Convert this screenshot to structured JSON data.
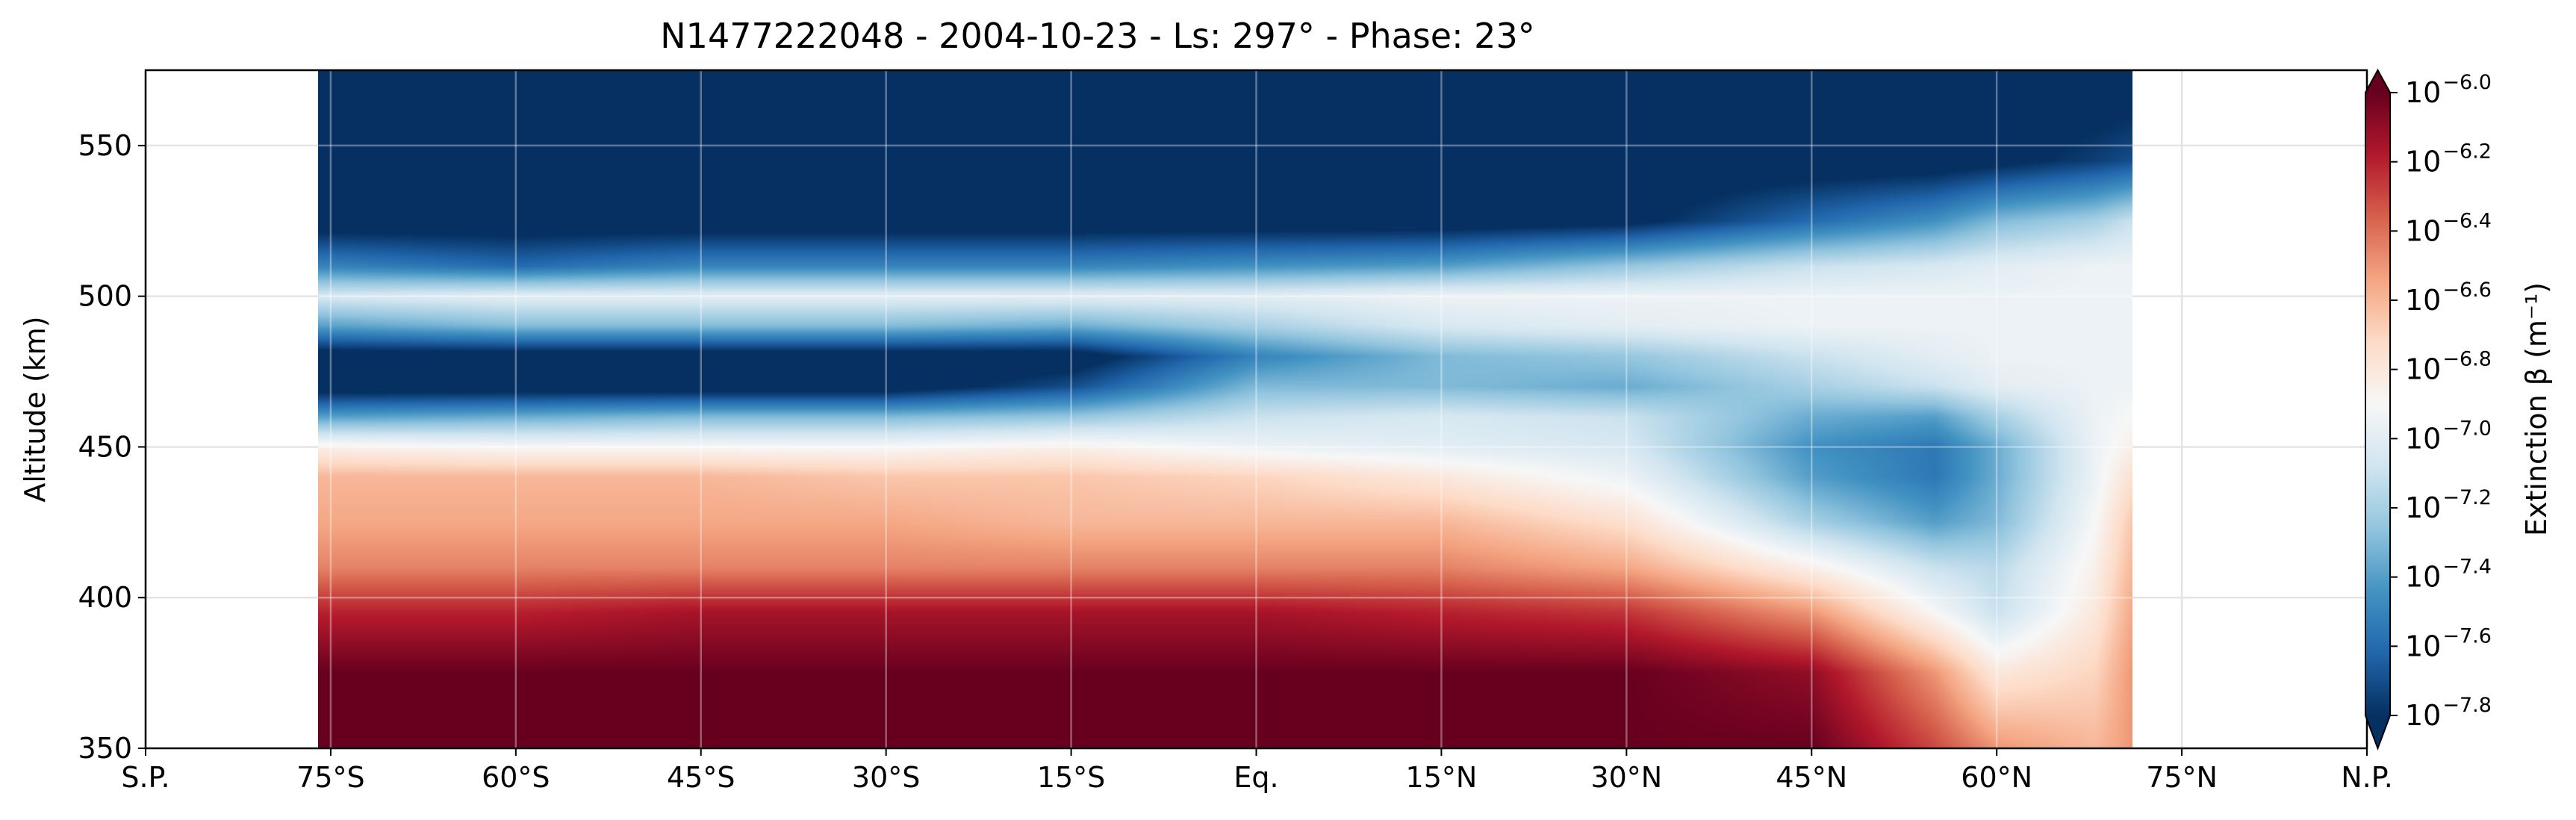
{
  "chart_data": {
    "type": "heatmap",
    "title": "N1477222048 - 2004-10-23 - Ls: 297° - Phase: 23°",
    "ylabel": "Altitude (km)",
    "xlabel": "",
    "colorbar_label": "Extinction β (m⁻¹)",
    "colormap": "RdBu_r",
    "colorbar_extend": "both",
    "grid": true,
    "x_ticks": [
      {
        "value": -90,
        "label": "S.P."
      },
      {
        "value": -75,
        "label": "75°S"
      },
      {
        "value": -60,
        "label": "60°S"
      },
      {
        "value": -45,
        "label": "45°S"
      },
      {
        "value": -30,
        "label": "30°S"
      },
      {
        "value": -15,
        "label": "15°S"
      },
      {
        "value": 0,
        "label": "Eq."
      },
      {
        "value": 15,
        "label": "15°N"
      },
      {
        "value": 30,
        "label": "30°N"
      },
      {
        "value": 45,
        "label": "45°N"
      },
      {
        "value": 60,
        "label": "60°N"
      },
      {
        "value": 75,
        "label": "75°N"
      },
      {
        "value": 90,
        "label": "N.P."
      }
    ],
    "xlim": [
      -90,
      90
    ],
    "y_ticks": [
      {
        "value": 350,
        "label": "350"
      },
      {
        "value": 400,
        "label": "400"
      },
      {
        "value": 450,
        "label": "450"
      },
      {
        "value": 500,
        "label": "500"
      },
      {
        "value": 550,
        "label": "550"
      }
    ],
    "ylim": [
      350,
      575
    ],
    "colorbar_ticks": [
      {
        "value": -6.0,
        "base": "10",
        "exp": "−6.0"
      },
      {
        "value": -6.2,
        "base": "10",
        "exp": "−6.2"
      },
      {
        "value": -6.4,
        "base": "10",
        "exp": "−6.4"
      },
      {
        "value": -6.6,
        "base": "10",
        "exp": "−6.6"
      },
      {
        "value": -6.8,
        "base": "10",
        "exp": "−6.8"
      },
      {
        "value": -7.0,
        "base": "10",
        "exp": "−7.0"
      },
      {
        "value": -7.2,
        "base": "10",
        "exp": "−7.2"
      },
      {
        "value": -7.4,
        "base": "10",
        "exp": "−7.4"
      },
      {
        "value": -7.6,
        "base": "10",
        "exp": "−7.6"
      },
      {
        "value": -7.8,
        "base": "10",
        "exp": "−7.8"
      }
    ],
    "clim": [
      -7.8,
      -6.0
    ],
    "data_lat_range": [
      -76,
      71
    ],
    "latitudes": [
      -76,
      -60,
      -45,
      -30,
      -15,
      0,
      15,
      30,
      45,
      55,
      60,
      68,
      71
    ],
    "altitudes": [
      350,
      375,
      395,
      410,
      425,
      440,
      450,
      460,
      470,
      480,
      490,
      500,
      510,
      525,
      545,
      575
    ],
    "log10_extinction": [
      [
        -6.0,
        -6.0,
        -6.0,
        -6.0,
        -6.0,
        -6.0,
        -6.0,
        -6.0,
        -6.0,
        -6.3,
        -6.5,
        -6.6,
        -6.5
      ],
      [
        -6.0,
        -6.0,
        -6.0,
        -6.0,
        -6.0,
        -6.0,
        -6.0,
        -6.0,
        -6.1,
        -6.5,
        -6.8,
        -6.7,
        -6.5
      ],
      [
        -6.2,
        -6.2,
        -6.15,
        -6.15,
        -6.15,
        -6.15,
        -6.2,
        -6.25,
        -6.5,
        -6.9,
        -7.1,
        -6.8,
        -6.55
      ],
      [
        -6.45,
        -6.45,
        -6.45,
        -6.45,
        -6.45,
        -6.45,
        -6.45,
        -6.55,
        -6.85,
        -7.1,
        -7.15,
        -6.85,
        -6.6
      ],
      [
        -6.55,
        -6.55,
        -6.55,
        -6.55,
        -6.6,
        -6.6,
        -6.6,
        -6.75,
        -7.2,
        -7.4,
        -7.3,
        -6.9,
        -6.65
      ],
      [
        -6.6,
        -6.6,
        -6.6,
        -6.65,
        -6.65,
        -6.7,
        -6.8,
        -6.95,
        -7.4,
        -7.55,
        -7.35,
        -6.95,
        -6.75
      ],
      [
        -6.85,
        -6.9,
        -6.9,
        -6.9,
        -6.85,
        -6.95,
        -7.0,
        -7.05,
        -7.45,
        -7.55,
        -7.35,
        -6.95,
        -6.85
      ],
      [
        -7.4,
        -7.35,
        -7.3,
        -7.3,
        -7.25,
        -7.1,
        -7.05,
        -7.1,
        -7.35,
        -7.4,
        -7.2,
        -6.95,
        -6.9
      ],
      [
        -7.9,
        -7.9,
        -7.9,
        -7.9,
        -7.7,
        -7.3,
        -7.3,
        -7.35,
        -7.2,
        -7.1,
        -7.0,
        -6.95,
        -6.95
      ],
      [
        -7.9,
        -7.9,
        -7.9,
        -7.9,
        -7.9,
        -7.5,
        -7.3,
        -7.25,
        -7.1,
        -7.0,
        -6.95,
        -6.95,
        -6.95
      ],
      [
        -7.4,
        -7.3,
        -7.3,
        -7.3,
        -7.35,
        -7.2,
        -7.05,
        -7.0,
        -6.95,
        -6.95,
        -6.95,
        -6.95,
        -6.95
      ],
      [
        -7.05,
        -7.0,
        -7.0,
        -7.0,
        -7.0,
        -7.0,
        -6.95,
        -6.95,
        -6.95,
        -6.95,
        -6.95,
        -6.95,
        -6.95
      ],
      [
        -7.5,
        -7.6,
        -7.5,
        -7.5,
        -7.5,
        -7.45,
        -7.4,
        -7.25,
        -7.1,
        -7.05,
        -7.0,
        -6.95,
        -6.95
      ],
      [
        -7.9,
        -7.9,
        -7.9,
        -7.9,
        -7.9,
        -7.9,
        -7.9,
        -7.85,
        -7.6,
        -7.45,
        -7.3,
        -7.2,
        -7.1
      ],
      [
        -7.9,
        -7.9,
        -7.9,
        -7.9,
        -7.9,
        -7.9,
        -7.9,
        -7.9,
        -7.9,
        -7.9,
        -7.85,
        -7.75,
        -7.7
      ],
      [
        -7.9,
        -7.9,
        -7.9,
        -7.9,
        -7.9,
        -7.9,
        -7.9,
        -7.9,
        -7.9,
        -7.9,
        -7.9,
        -7.9,
        -7.9
      ]
    ]
  }
}
